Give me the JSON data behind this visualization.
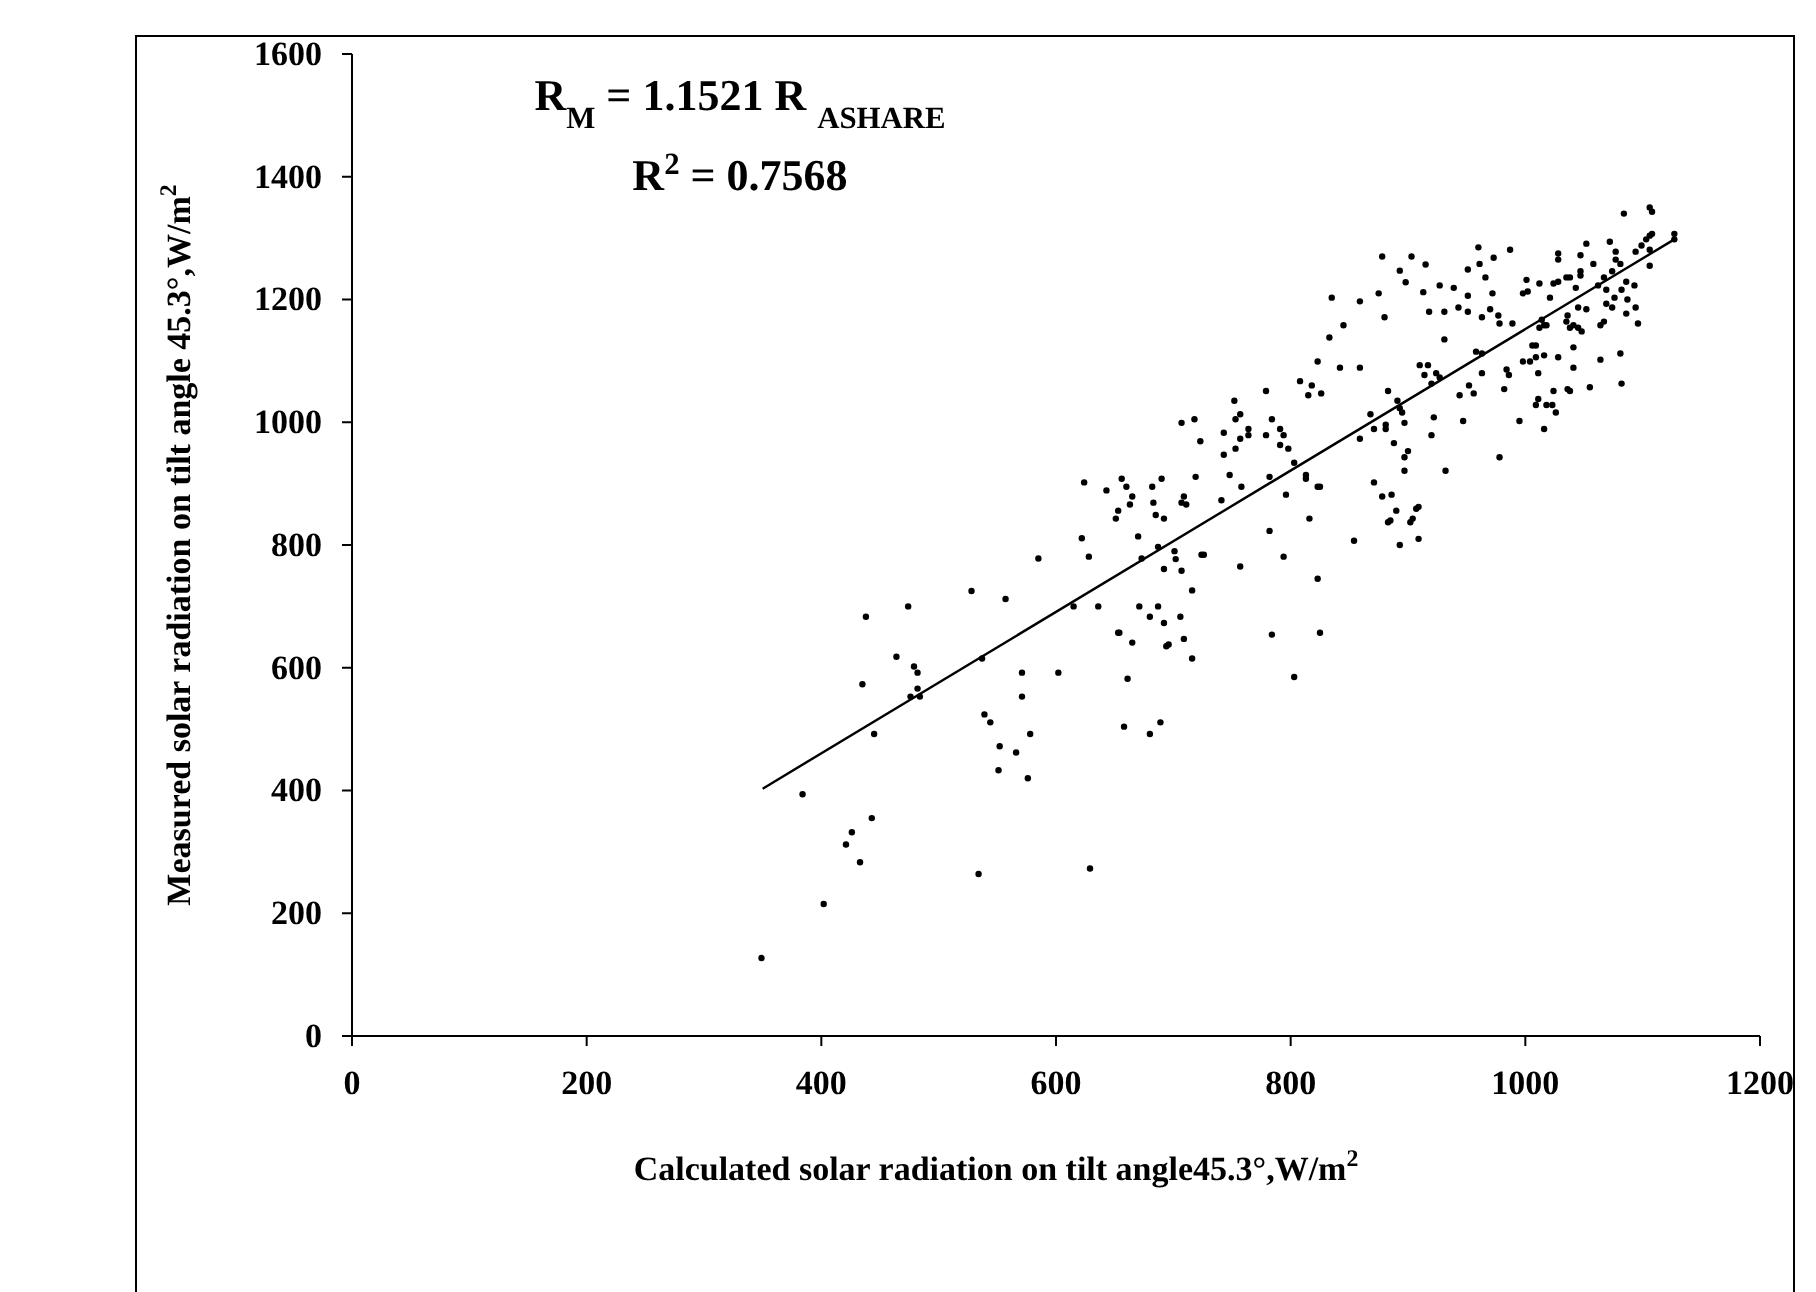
{
  "chart_data": {
    "type": "scatter",
    "xlabel": "Calculated solar radiation on tilt angle45.3°,W/m$^{2}$",
    "ylabel": "Measured solar radiation on tilt angle 45.3°,W/m$^{2}$",
    "annotations": [
      "R$_{M}$ = 1.1521 R $_{ASHARE}$",
      "R$^{2}$ = 0.7568"
    ],
    "xlim": [
      0,
      1200
    ],
    "xticks": [
      0,
      200,
      400,
      600,
      800,
      1000,
      1200
    ],
    "ylim": [
      0,
      1600
    ],
    "yticks": [
      0,
      200,
      400,
      600,
      800,
      1000,
      1200,
      1400,
      1600
    ],
    "grid": false,
    "series": [
      {
        "marker": "circle",
        "color": "#000000",
        "x": [
          349,
          384,
          402,
          421,
          426,
          433,
          443,
          438,
          435,
          445,
          464,
          474,
          479,
          482,
          482,
          476,
          484,
          528,
          537,
          557,
          539,
          544,
          552,
          551,
          566,
          571,
          571,
          578,
          576,
          534,
          602,
          629,
          585,
          615,
          636,
          622,
          628,
          653,
          624,
          643,
          651,
          653,
          656,
          660,
          663,
          665,
          654,
          665,
          661,
          658,
          680,
          689,
          670,
          673,
          671,
          680,
          687,
          692,
          694,
          696,
          682,
          683,
          685,
          690,
          692,
          687,
          692,
          701,
          702,
          706,
          709,
          716,
          707,
          716,
          707,
          709,
          711,
          707,
          718,
          723,
          719,
          724,
          726,
          741,
          743,
          743,
          748,
          752,
          753,
          753,
          757,
          757,
          758,
          757,
          764,
          764,
          779,
          784,
          779,
          782,
          782,
          784,
          791,
          794,
          791,
          798,
          803,
          796,
          794,
          803,
          808,
          815,
          818,
          826,
          823,
          813,
          813,
          823,
          825,
          816,
          823,
          825,
          842,
          859,
          859,
          854,
          868,
          871,
          871,
          878,
          881,
          881,
          883,
          888,
          886,
          890,
          883,
          885,
          891,
          893,
          895,
          897,
          893,
          897,
          900,
          897,
          902,
          904,
          907,
          909,
          909,
          910,
          917,
          914,
          920,
          924,
          922,
          920,
          932,
          944,
          947,
          952,
          956,
          978,
          995,
          1016,
          963,
          958,
          927,
          931,
          927,
          931,
          939,
          943,
          951,
          951,
          951,
          960,
          961,
          966,
          972,
          973,
          987,
          970,
          963,
          977,
          978,
          989,
          963,
          984,
          986,
          982,
          1009,
          1018,
          1023,
          1026,
          1011,
          1024,
          1036,
          1038,
          1055,
          1082,
          1064,
          1081,
          1041,
          1028,
          1016,
          1009,
          1004,
          998,
          1006,
          1009,
          1011,
          1041,
          998,
          1001,
          1002,
          1012,
          1021,
          1016,
          1014,
          1018,
          1012,
          1028,
          1028,
          1024,
          1028,
          1035,
          1036,
          1038,
          1041,
          1045,
          1048,
          1035,
          1038,
          1043,
          1047,
          1047,
          1052,
          1047,
          1058,
          1045,
          1052,
          1064,
          1067,
          1069,
          1074,
          1076,
          1062,
          1067,
          1069,
          1074,
          1077,
          1072,
          1077,
          1081,
          1082,
          1086,
          1087,
          1086,
          1093,
          1094,
          1096,
          1084,
          1106,
          1108,
          1094,
          1099,
          1103,
          1106,
          1108,
          1106,
          1106,
          1127,
          1127,
          878,
          893,
          903,
          915,
          898,
          913,
          875,
          859,
          880,
          845,
          833,
          918,
          835
        ],
        "values": [
          127,
          394,
          215,
          312,
          332,
          283,
          355,
          683,
          573,
          492,
          618,
          700,
          602,
          592,
          566,
          553,
          553,
          725,
          615,
          712,
          524,
          511,
          472,
          433,
          462,
          592,
          553,
          492,
          420,
          264,
          592,
          273,
          778,
          700,
          700,
          811,
          781,
          657,
          902,
          889,
          843,
          856,
          908,
          895,
          866,
          879,
          657,
          641,
          582,
          504,
          492,
          511,
          814,
          778,
          700,
          683,
          700,
          673,
          635,
          638,
          895,
          869,
          849,
          908,
          843,
          797,
          761,
          790,
          777,
          683,
          647,
          615,
          758,
          726,
          869,
          879,
          866,
          999,
          1005,
          969,
          911,
          784,
          784,
          873,
          983,
          947,
          914,
          1035,
          957,
          1005,
          1013,
          973,
          895,
          765,
          989,
          979,
          1051,
          1005,
          979,
          911,
          823,
          654,
          989,
          979,
          963,
          957,
          934,
          882,
          781,
          585,
          1067,
          1044,
          1060,
          1047,
          1099,
          914,
          908,
          895,
          895,
          843,
          745,
          657,
          1089,
          1089,
          973,
          807,
          1013,
          989,
          902,
          879,
          996,
          989,
          1051,
          966,
          882,
          856,
          837,
          840,
          1035,
          1023,
          1016,
          999,
          800,
          943,
          953,
          921,
          837,
          843,
          859,
          862,
          810,
          1093,
          1093,
          1077,
          1063,
          1080,
          1008,
          979,
          921,
          1044,
          1002,
          1060,
          1047,
          943,
          1002,
          989,
          1080,
          1115,
          1073,
          1135,
          1223,
          1180,
          1219,
          1187,
          1206,
          1180,
          1249,
          1285,
          1258,
          1236,
          1210,
          1268,
          1281,
          1184,
          1171,
          1174,
          1161,
          1161,
          1112,
          1086,
          1077,
          1054,
          1028,
          1028,
          1028,
          1016,
          1038,
          1051,
          1054,
          1051,
          1057,
          1063,
          1102,
          1112,
          1089,
          1106,
          1109,
          1106,
          1099,
          1099,
          1125,
          1125,
          1080,
          1122,
          1210,
          1232,
          1213,
          1226,
          1203,
          1158,
          1167,
          1158,
          1154,
          1265,
          1275,
          1226,
          1229,
          1164,
          1174,
          1154,
          1158,
          1154,
          1148,
          1236,
          1236,
          1219,
          1246,
          1239,
          1291,
          1272,
          1258,
          1187,
          1184,
          1158,
          1164,
          1193,
          1187,
          1203,
          1223,
          1236,
          1216,
          1246,
          1265,
          1294,
          1278,
          1258,
          1216,
          1229,
          1200,
          1177,
          1223,
          1187,
          1161,
          1340,
          1350,
          1343,
          1278,
          1288,
          1298,
          1304,
          1307,
          1281,
          1255,
          1307,
          1298,
          1270,
          1247,
          1270,
          1257,
          1228,
          1212,
          1210,
          1197,
          1171,
          1158,
          1138,
          1180,
          1203
        ]
      },
      {
        "type": "line",
        "color": "#000000",
        "line_style": "solid",
        "x": [
          350,
          1127
        ],
        "values": [
          403,
          1298
        ]
      }
    ]
  }
}
